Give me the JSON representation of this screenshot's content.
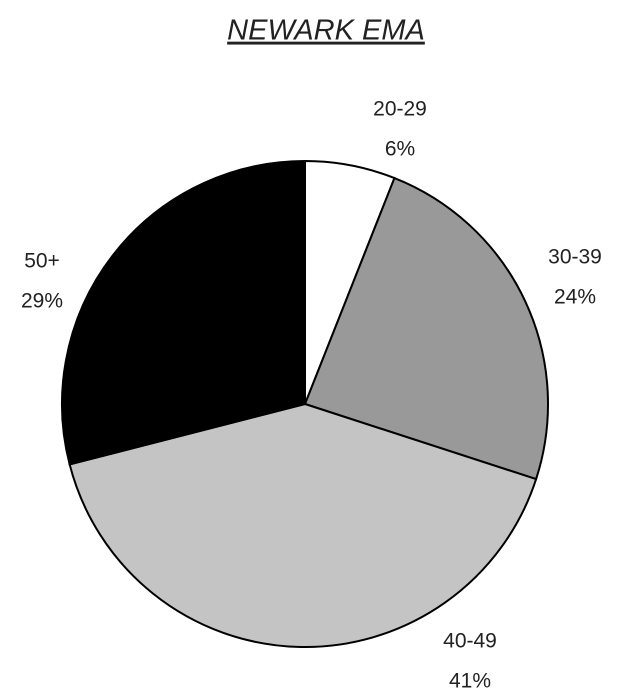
{
  "chart_data": {
    "type": "pie",
    "title": "NEWARK EMA",
    "categories": [
      "20-29",
      "30-39",
      "40-49",
      "50+"
    ],
    "values": [
      6,
      24,
      41,
      29
    ],
    "value_labels": [
      "6%",
      "24%",
      "41%",
      "29%"
    ],
    "colors": [
      "#ffffff",
      "#999999",
      "#c4c4c4",
      "#000000"
    ]
  }
}
